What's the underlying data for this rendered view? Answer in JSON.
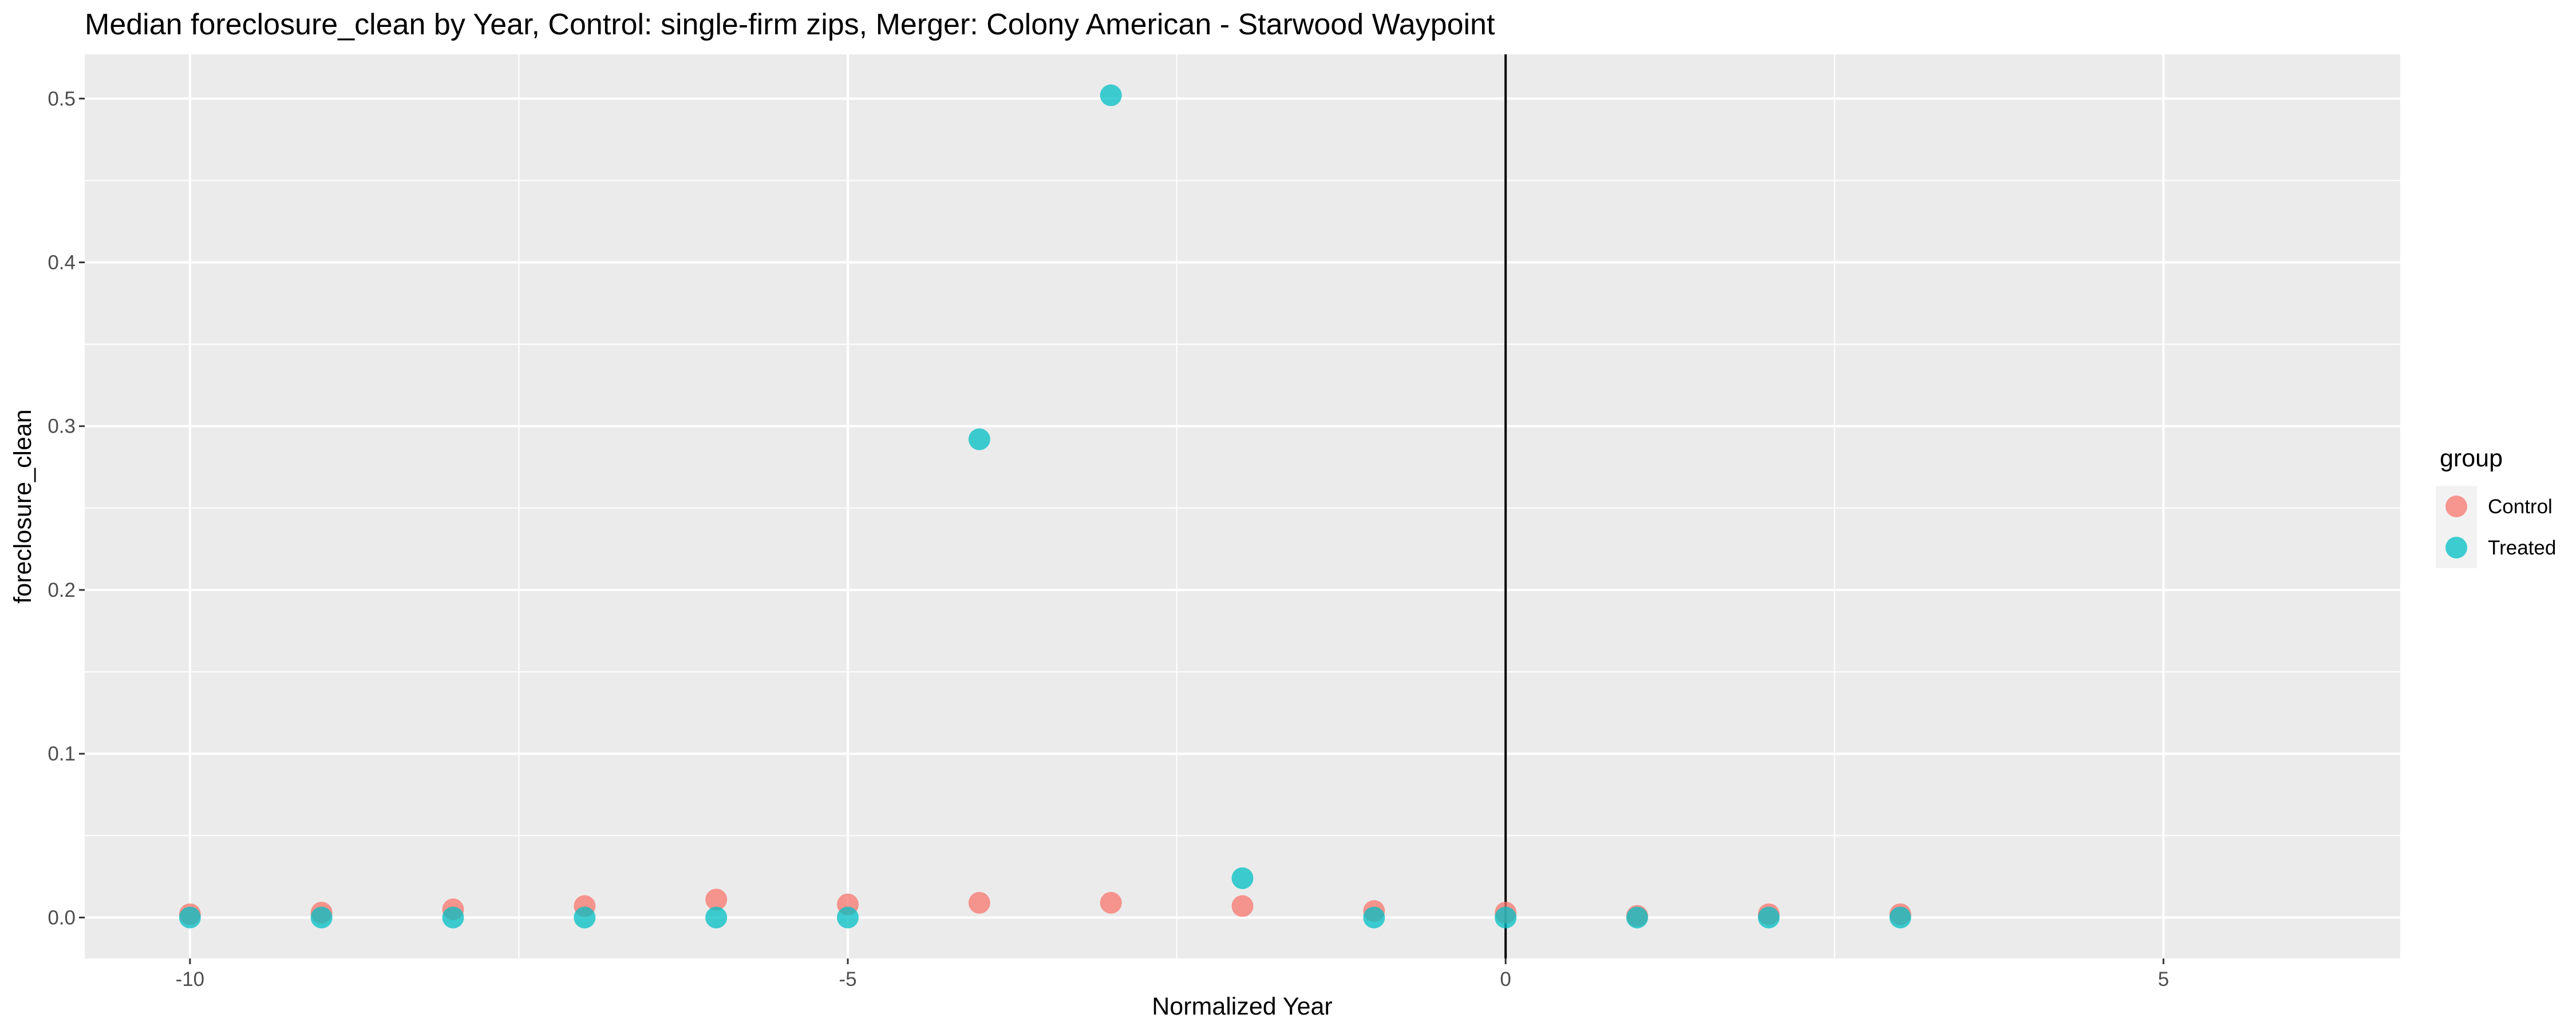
{
  "chart_data": {
    "type": "scatter",
    "title": "Median foreclosure_clean by Year, Control: single-firm zips, Merger: Colony American - Starwood Waypoint",
    "xlabel": "Normalized Year",
    "ylabel": "foreclosure_clean",
    "xlim": [
      -10.8,
      6.8
    ],
    "ylim": [
      -0.025,
      0.527
    ],
    "x_ticks": [
      -10,
      -5,
      0,
      5
    ],
    "x_tick_labels": [
      "-10",
      "-5",
      "0",
      "5"
    ],
    "y_ticks": [
      0.0,
      0.1,
      0.2,
      0.3,
      0.4,
      0.5
    ],
    "y_tick_labels": [
      "0.0",
      "0.1",
      "0.2",
      "0.3",
      "0.4",
      "0.5"
    ],
    "grid": true,
    "vline_x": 0,
    "legend_title": "group",
    "legend_position": "right",
    "series": [
      {
        "name": "Control",
        "color": "#F8766D",
        "x": [
          -10,
          -9,
          -8,
          -7,
          -6,
          -5,
          -4,
          -3,
          -2,
          -1,
          0,
          1,
          2,
          3
        ],
        "y": [
          0.002,
          0.003,
          0.005,
          0.007,
          0.011,
          0.008,
          0.009,
          0.009,
          0.007,
          0.004,
          0.003,
          0.001,
          0.002,
          0.002
        ]
      },
      {
        "name": "Treated",
        "color": "#00BFC4",
        "x": [
          -10,
          -9,
          -8,
          -7,
          -6,
          -5,
          -4,
          -3,
          -2,
          -1,
          0,
          1,
          2,
          3
        ],
        "y": [
          0.0,
          0.0,
          0.0,
          0.0,
          0.0,
          0.0,
          0.292,
          0.502,
          0.024,
          0.0,
          0.0,
          0.0,
          0.0,
          0.0
        ]
      }
    ]
  }
}
